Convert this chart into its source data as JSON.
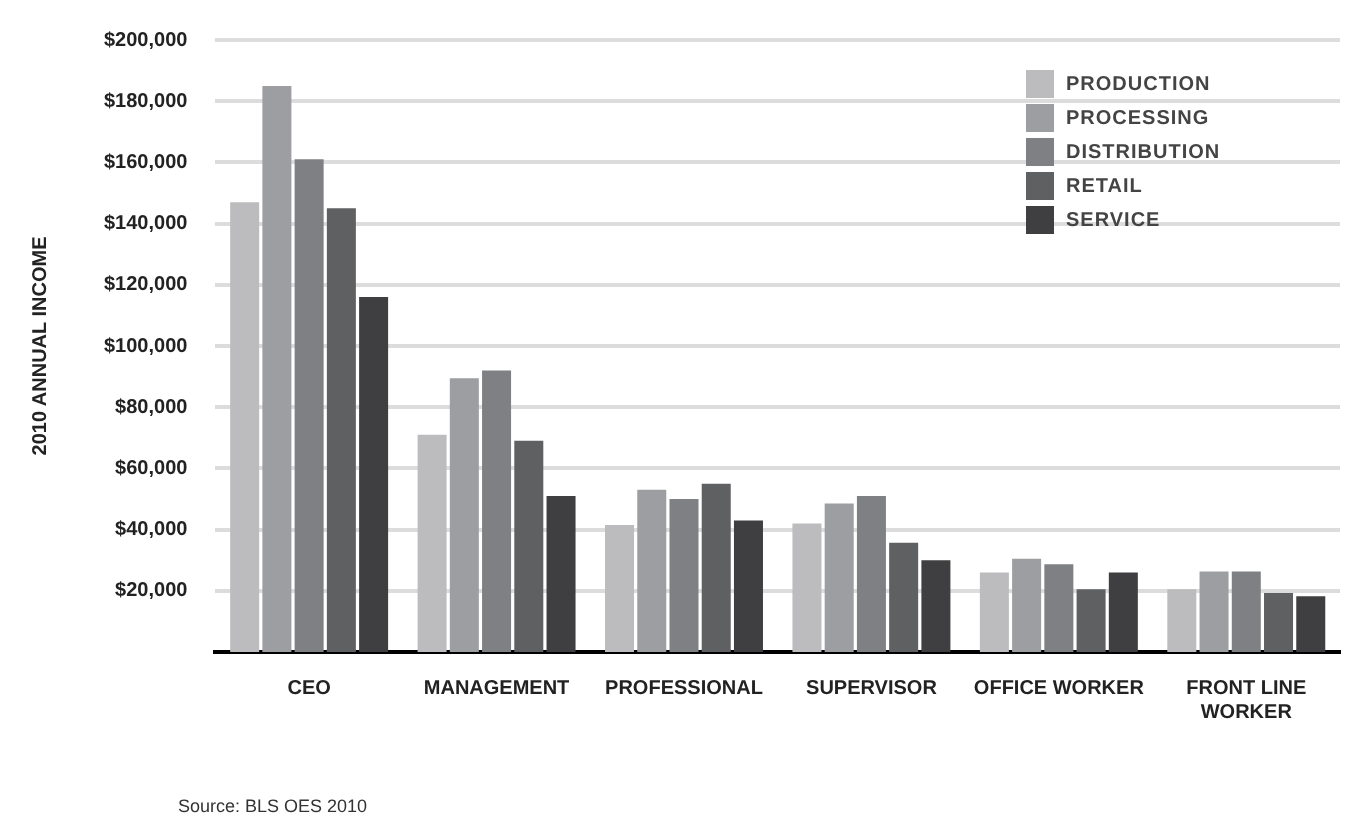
{
  "chart_data": {
    "type": "bar",
    "ylabel": "2010 ANNUAL INCOME",
    "categories": [
      "CEO",
      "MANAGEMENT",
      "PROFESSIONAL",
      "SUPERVISOR",
      "OFFICE WORKER",
      "FRONT LINE WORKER"
    ],
    "series": [
      {
        "name": "PRODUCTION",
        "color": "#bcbcbe",
        "values": [
          147000,
          71000,
          41500,
          42000,
          26000,
          20500
        ]
      },
      {
        "name": "PROCESSING",
        "color": "#9d9ea1",
        "values": [
          185000,
          89500,
          53000,
          48500,
          30500,
          26300
        ]
      },
      {
        "name": "DISTRIBUTION",
        "color": "#7f8083",
        "values": [
          161000,
          92000,
          50000,
          51000,
          28700,
          26300
        ]
      },
      {
        "name": "RETAIL",
        "color": "#5f6062",
        "values": [
          145000,
          69000,
          55000,
          35700,
          20500,
          19300
        ]
      },
      {
        "name": "SERVICE",
        "color": "#3f3f41",
        "values": [
          116000,
          51000,
          43000,
          30000,
          26000,
          18200
        ]
      }
    ],
    "ylim": [
      0,
      200000
    ],
    "yticks": [
      {
        "value": 20000,
        "label": "$20,000"
      },
      {
        "value": 40000,
        "label": "$40,000"
      },
      {
        "value": 60000,
        "label": "$60,000"
      },
      {
        "value": 80000,
        "label": "$80,000"
      },
      {
        "value": 100000,
        "label": "$100,000"
      },
      {
        "value": 120000,
        "label": "$120,000"
      },
      {
        "value": 140000,
        "label": "$140,000"
      },
      {
        "value": 160000,
        "label": "$160,000"
      },
      {
        "value": 180000,
        "label": "$180,000"
      },
      {
        "value": 200000,
        "label": "$200,000"
      }
    ],
    "grid": "y",
    "legend": "top right",
    "annotations": [
      "Source: BLS OES 2010"
    ]
  }
}
